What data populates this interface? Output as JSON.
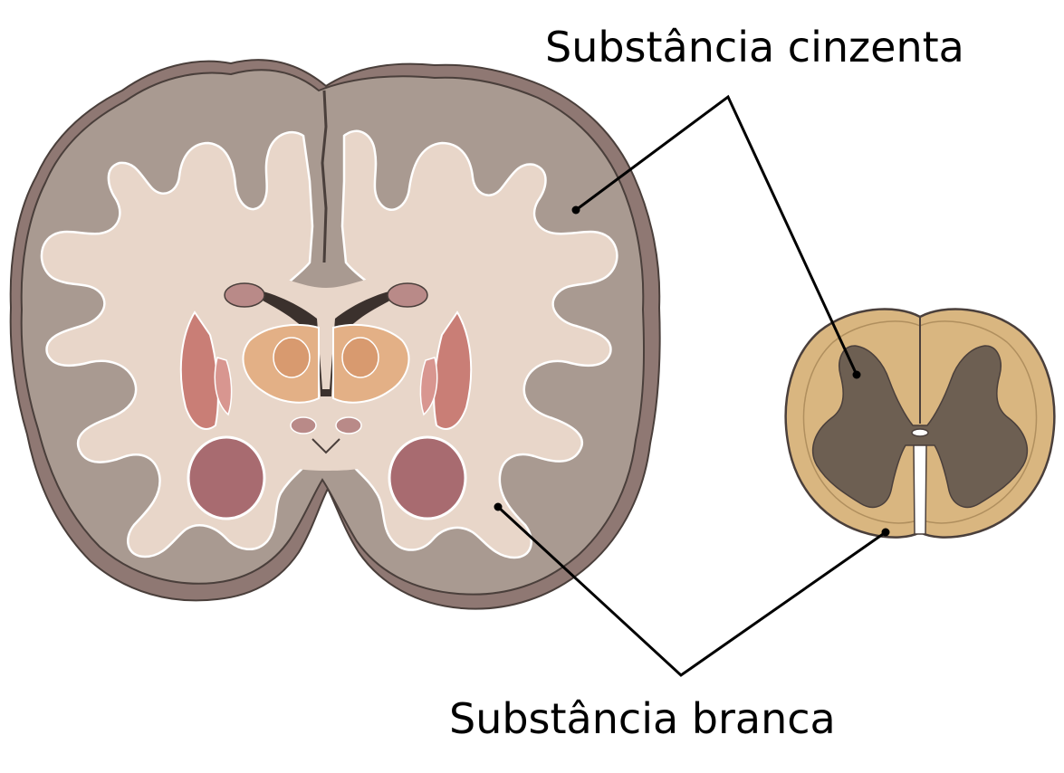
{
  "labels": {
    "gray_matter": "Substância cinzenta",
    "white_matter": "Substância branca"
  },
  "colors": {
    "cortex_shadow": "#8f7873",
    "cortex_gray": "#a99a91",
    "white_matter": "#e8d6c9",
    "outline": "#4a3f3b",
    "ventricle": "#3b312d",
    "thalamus": "#e3b086",
    "putamen": "#c97e76",
    "hippocampus": "#a86b70",
    "spinal_white": "#d9b680",
    "spinal_gray": "#6d5f52",
    "leader": "#000000"
  }
}
